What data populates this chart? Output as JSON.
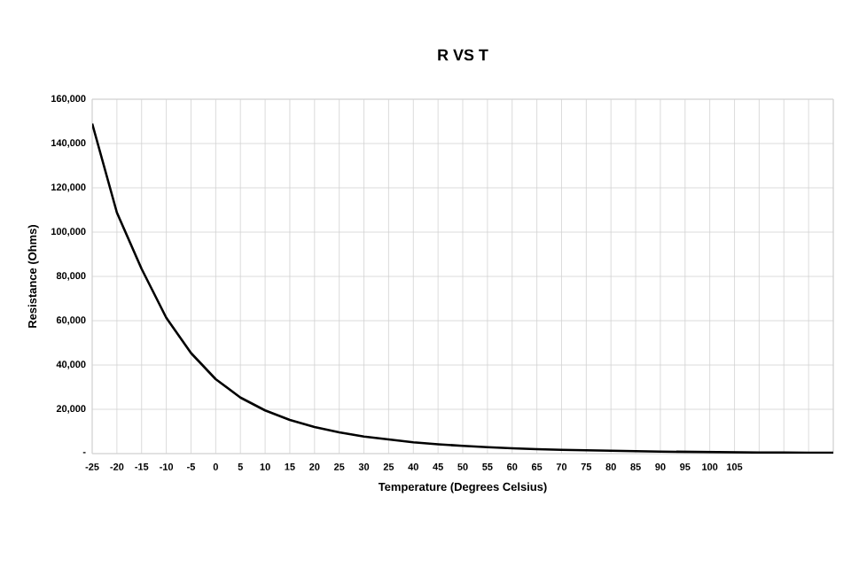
{
  "chart_data": {
    "type": "line",
    "title": "R VS T",
    "xlabel": "Temperature (Degrees Celsius)",
    "ylabel": "Resistance (Ohms)",
    "categories": [
      "-25",
      "-20",
      "-15",
      "-10",
      "-5",
      "0",
      "5",
      "10",
      "15",
      "20",
      "25",
      "30",
      "25",
      "40",
      "45",
      "50",
      "55",
      "60",
      "65",
      "70",
      "75",
      "80",
      "85",
      "90",
      "95",
      "100",
      "105",
      null,
      null,
      null,
      null
    ],
    "series": [
      {
        "color": "#000000",
        "values": [
          149000,
          108800,
          83400,
          61300,
          45400,
          33600,
          25300,
          19500,
          15200,
          12000,
          9600,
          7700,
          6400,
          5100,
          4200,
          3500,
          2900,
          2400,
          2000,
          1700,
          1500,
          1300,
          1100,
          900,
          800,
          700,
          600,
          500,
          500,
          400,
          400
        ]
      }
    ],
    "ylim": [
      0,
      160000
    ],
    "yticks": [
      {
        "value": 0,
        "label": "-"
      },
      {
        "value": 20000,
        "label": "20,000"
      },
      {
        "value": 40000,
        "label": "40,000"
      },
      {
        "value": 60000,
        "label": "60,000"
      },
      {
        "value": 80000,
        "label": "80,000"
      },
      {
        "value": 100000,
        "label": "100,000"
      },
      {
        "value": 120000,
        "label": "120,000"
      },
      {
        "value": 140000,
        "label": "140,000"
      },
      {
        "value": 160000,
        "label": "160,000"
      }
    ],
    "grid": true,
    "marker": "none",
    "line_style": "solid"
  }
}
